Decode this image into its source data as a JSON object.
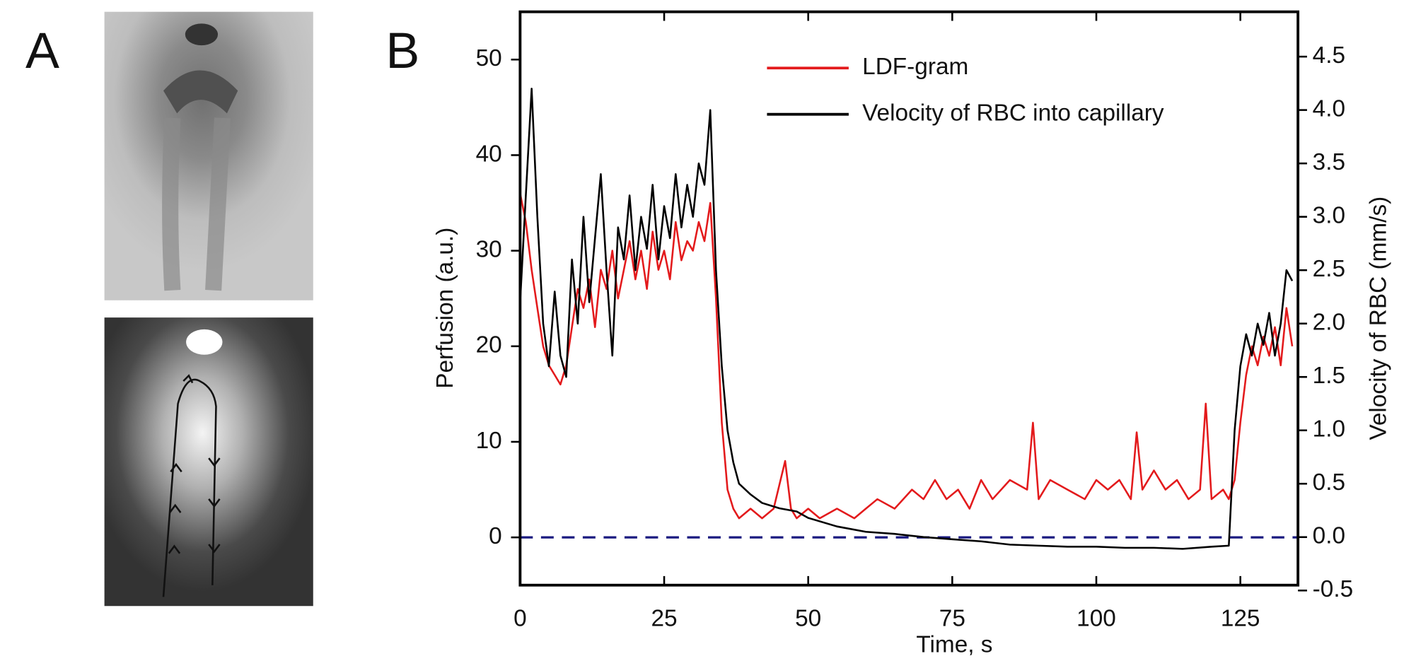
{
  "panel_a": {
    "label": "A"
  },
  "chart_data": {
    "type": "line",
    "panel_label": "B",
    "xlabel": "Time, s",
    "ylabel": "Perfusion (a.u.)",
    "y2label": "Velocity  of  RBC (mm/s)",
    "xlim": [
      0,
      135
    ],
    "xticks": [
      0,
      25,
      50,
      75,
      100,
      125
    ],
    "ylim": [
      -5,
      55
    ],
    "yticks": [
      0,
      10,
      20,
      30,
      40,
      50
    ],
    "y2lim": [
      -0.45,
      4.92
    ],
    "y2ticks": [
      -0.5,
      {
        "value": 0,
        "label": "0.0"
      },
      0.5,
      {
        "value": 1,
        "label": "1.0"
      },
      1.5,
      {
        "value": 2,
        "label": "2.0"
      },
      2.5,
      {
        "value": 3,
        "label": "3.0"
      },
      3.5,
      {
        "value": 4,
        "label": "4.0"
      },
      4.5
    ],
    "reference_line": {
      "value": 0,
      "color": "#1a1a80"
    },
    "legend": "upper center",
    "series": [
      {
        "name": "LDF-gram",
        "color": "#e31a1c",
        "axis": "y",
        "x": [
          0,
          1,
          2,
          3,
          4,
          5,
          6,
          7,
          8,
          9,
          10,
          11,
          12,
          13,
          14,
          15,
          16,
          17,
          18,
          19,
          20,
          21,
          22,
          23,
          24,
          25,
          26,
          27,
          28,
          29,
          30,
          31,
          32,
          33,
          34,
          35,
          36,
          37,
          38,
          40,
          42,
          44,
          46,
          47,
          48,
          50,
          52,
          55,
          58,
          60,
          62,
          65,
          68,
          70,
          72,
          74,
          76,
          78,
          80,
          82,
          85,
          88,
          89,
          90,
          92,
          95,
          98,
          100,
          102,
          104,
          106,
          107,
          108,
          110,
          112,
          114,
          116,
          118,
          119,
          120,
          122,
          123,
          124,
          125,
          126,
          127,
          128,
          129,
          130,
          131,
          132,
          133,
          134
        ],
        "values": [
          36,
          33,
          28,
          24,
          20,
          18,
          17,
          16,
          18,
          22,
          26,
          24,
          27,
          22,
          28,
          26,
          30,
          25,
          28,
          31,
          27,
          30,
          26,
          32,
          28,
          30,
          27,
          33,
          29,
          31,
          30,
          33,
          31,
          35,
          25,
          12,
          5,
          3,
          2,
          3,
          2,
          3,
          8,
          3,
          2,
          3,
          2,
          3,
          2,
          3,
          4,
          3,
          5,
          4,
          6,
          4,
          5,
          3,
          6,
          4,
          6,
          5,
          12,
          4,
          6,
          5,
          4,
          6,
          5,
          6,
          4,
          11,
          5,
          7,
          5,
          6,
          4,
          5,
          14,
          4,
          5,
          4,
          6,
          12,
          17,
          20,
          18,
          21,
          19,
          22,
          18,
          24,
          20
        ]
      },
      {
        "name": "Velocity of RBC into capillary",
        "color": "#000000",
        "axis": "y2",
        "x": [
          0,
          1,
          2,
          3,
          4,
          5,
          6,
          7,
          8,
          9,
          10,
          11,
          12,
          13,
          14,
          15,
          16,
          17,
          18,
          19,
          20,
          21,
          22,
          23,
          24,
          25,
          26,
          27,
          28,
          29,
          30,
          31,
          32,
          33,
          34,
          35,
          36,
          37,
          38,
          40,
          42,
          45,
          48,
          50,
          55,
          60,
          65,
          70,
          75,
          80,
          85,
          90,
          95,
          100,
          105,
          110,
          115,
          120,
          123,
          124,
          125,
          126,
          127,
          128,
          129,
          130,
          131,
          132,
          133,
          134
        ],
        "values": [
          2.2,
          3.2,
          4.2,
          3.0,
          2.0,
          1.6,
          2.3,
          1.7,
          1.5,
          2.6,
          2.0,
          3.0,
          2.2,
          2.8,
          3.4,
          2.5,
          1.7,
          2.9,
          2.6,
          3.2,
          2.5,
          3.0,
          2.7,
          3.3,
          2.6,
          3.1,
          2.8,
          3.4,
          2.9,
          3.3,
          3.0,
          3.5,
          3.3,
          4.0,
          2.5,
          1.6,
          1.0,
          0.7,
          0.5,
          0.4,
          0.32,
          0.27,
          0.24,
          0.18,
          0.1,
          0.05,
          0.03,
          0.0,
          -0.02,
          -0.04,
          -0.07,
          -0.08,
          -0.09,
          -0.09,
          -0.1,
          -0.1,
          -0.11,
          -0.09,
          -0.08,
          1.0,
          1.6,
          1.9,
          1.7,
          2.0,
          1.8,
          2.1,
          1.7,
          2.0,
          2.5,
          2.4
        ]
      }
    ]
  }
}
